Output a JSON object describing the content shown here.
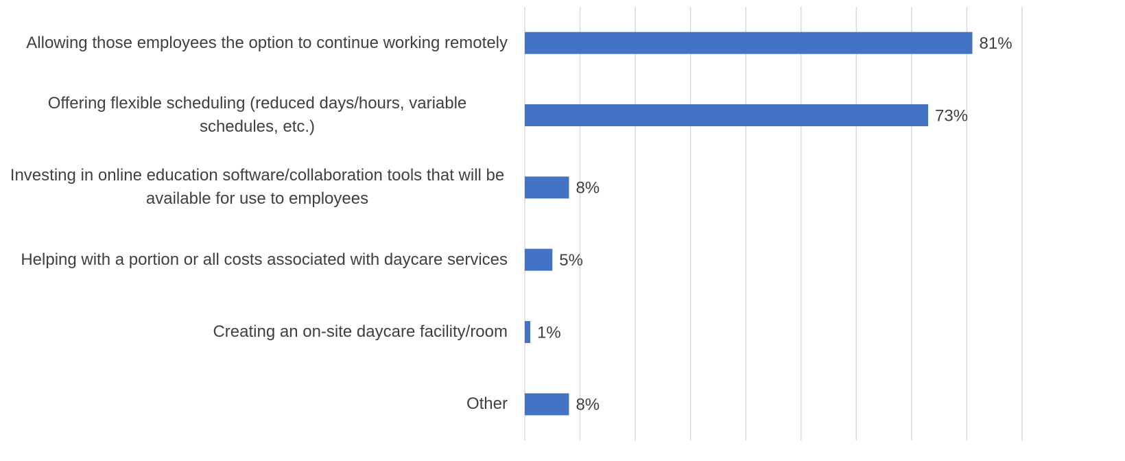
{
  "chart_data": {
    "type": "bar",
    "orientation": "horizontal",
    "categories": [
      "Allowing those employees the option to continue working remotely",
      "Offering flexible scheduling (reduced days/hours, variable schedules, etc.)",
      "Investing in online education software/collaboration tools that will be available for use to employees",
      "Helping with a portion or all costs associated with daycare services",
      "Creating an on-site daycare facility/room",
      "Other"
    ],
    "values": [
      81,
      73,
      8,
      5,
      1,
      8
    ],
    "value_labels": [
      "81%",
      "73%",
      "8%",
      "5%",
      "1%",
      "8%"
    ],
    "color": "#4472c4",
    "xlim": [
      0,
      90
    ],
    "xticks": [
      0,
      10,
      20,
      30,
      40,
      50,
      60,
      70,
      80,
      90
    ],
    "grid": true
  }
}
